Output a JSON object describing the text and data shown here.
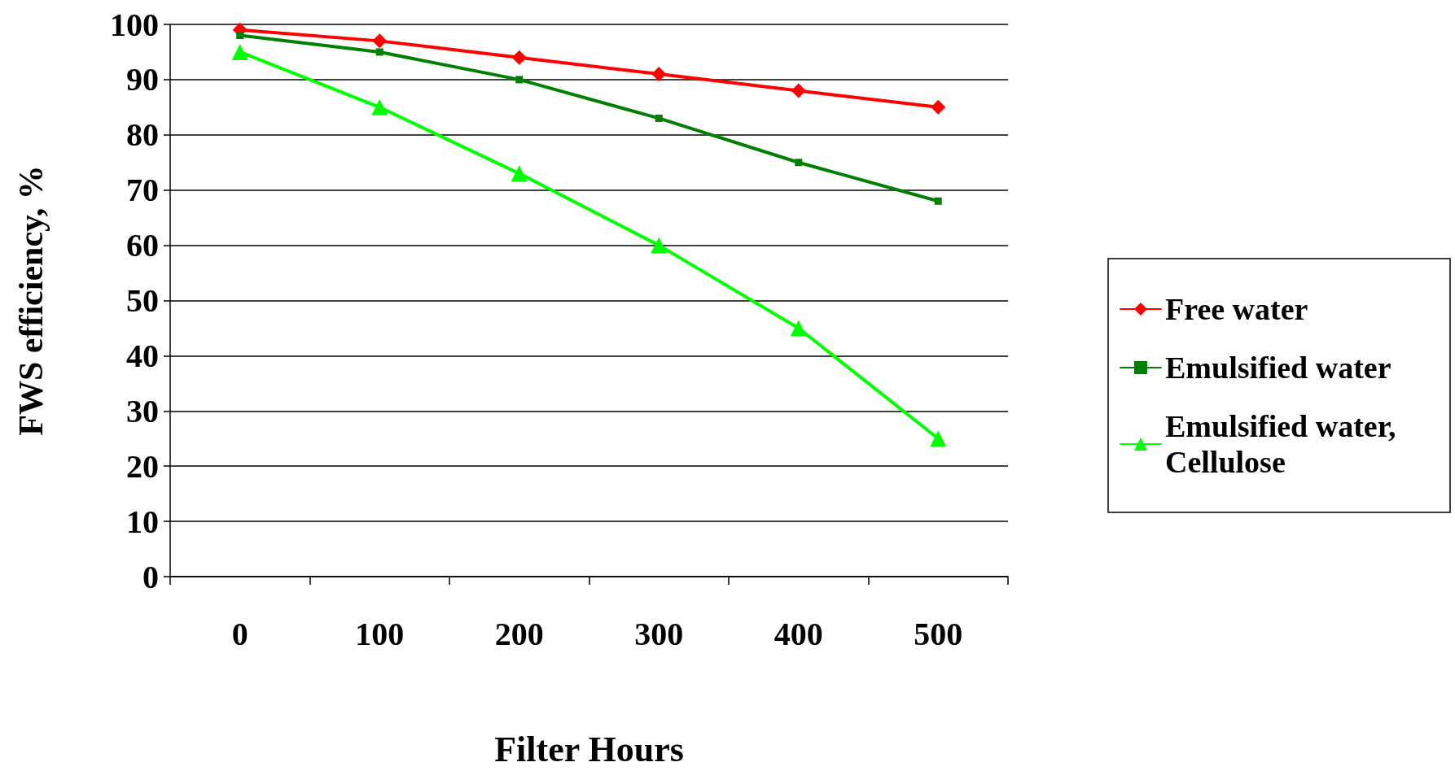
{
  "chart_data": {
    "type": "line",
    "xlabel": "Filter Hours",
    "ylabel": "FWS efficiency, %",
    "categories": [
      "0",
      "100",
      "200",
      "300",
      "400",
      "500"
    ],
    "series": [
      {
        "name": "Free water",
        "color": "#ff0000",
        "marker": "diamond",
        "values": [
          99,
          97,
          94,
          91,
          88,
          85
        ]
      },
      {
        "name": "Emulsified water",
        "color": "#008000",
        "marker": "square",
        "values": [
          98,
          95,
          90,
          83,
          75,
          68
        ]
      },
      {
        "name": "Emulsified water, Cellulose",
        "color": "#00ff00",
        "marker": "triangle",
        "values": [
          95,
          85,
          73,
          60,
          45,
          25
        ]
      }
    ],
    "ylim": [
      0,
      100
    ],
    "yticks": [
      0,
      10,
      20,
      30,
      40,
      50,
      60,
      70,
      80,
      90,
      100
    ],
    "grid": "y",
    "legend": "right",
    "line_style": "solid"
  }
}
